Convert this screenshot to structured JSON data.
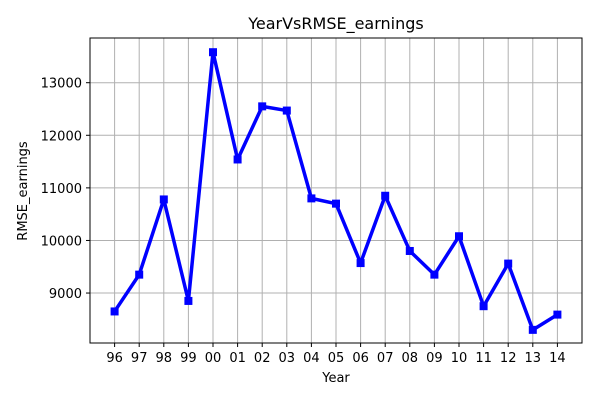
{
  "chart_data": {
    "type": "line",
    "title": "YearVsRMSE_earnings",
    "xlabel": "Year",
    "ylabel": "RMSE_earnings",
    "categories": [
      "96",
      "97",
      "98",
      "99",
      "00",
      "01",
      "02",
      "03",
      "04",
      "05",
      "06",
      "07",
      "08",
      "09",
      "10",
      "11",
      "12",
      "13",
      "14"
    ],
    "series": [
      {
        "values": [
          8650,
          9350,
          10780,
          8850,
          13580,
          11540,
          12550,
          12470,
          10800,
          10700,
          9570,
          10850,
          9800,
          9350,
          10080,
          8750,
          9560,
          8300,
          8590
        ]
      }
    ],
    "yticks": [
      9000,
      10000,
      11000,
      12000,
      13000
    ],
    "ylim": [
      8050,
      13850
    ],
    "grid": true,
    "colors": {
      "line": "#0000ff",
      "grid": "#b0b0b0",
      "frame": "#000000"
    }
  }
}
